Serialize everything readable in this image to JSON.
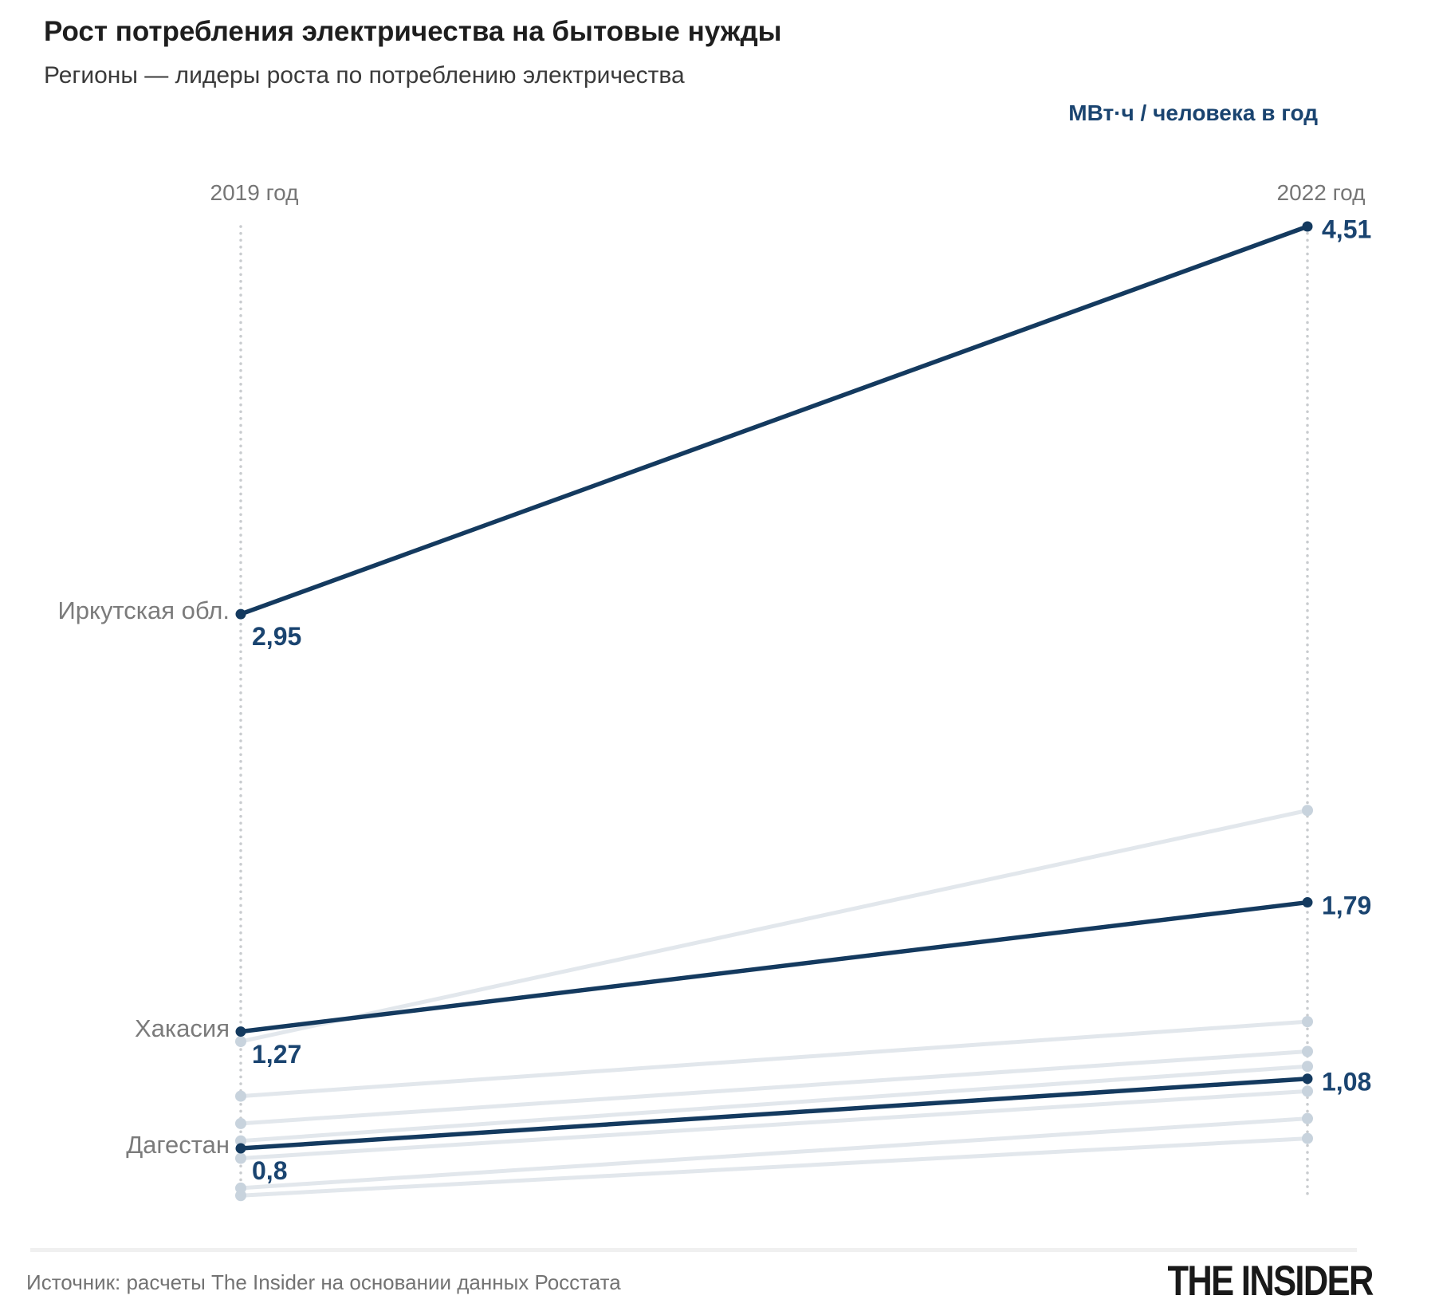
{
  "header": {
    "title": "Рост потребления электричества на бытовые нужды",
    "subtitle": "Регионы — лидеры роста по потреблению электричества"
  },
  "chart_data": {
    "type": "line",
    "subtype": "slope-chart",
    "unit": "МВт·ч / человека в год",
    "x_labels": [
      "2019 год",
      "2022 год"
    ],
    "value_range": [
      0.61,
      4.51
    ],
    "legend_position": "none",
    "grid": "off",
    "series": [
      {
        "name": "Иркутская обл.",
        "values": [
          2.95,
          4.51
        ],
        "value_labels": [
          "2,95",
          "4,51"
        ],
        "highlighted": true
      },
      {
        "name": "Хакасия",
        "values": [
          1.27,
          1.79
        ],
        "value_labels": [
          "1,27",
          "1,79"
        ],
        "highlighted": true
      },
      {
        "name": "Дагестан",
        "values": [
          0.8,
          1.08
        ],
        "value_labels": [
          "0,8",
          "1,08"
        ],
        "highlighted": true
      },
      {
        "name": "",
        "values": [
          1.23,
          2.16
        ],
        "highlighted": false
      },
      {
        "name": "",
        "values": [
          1.01,
          1.31
        ],
        "highlighted": false
      },
      {
        "name": "",
        "values": [
          0.9,
          1.19
        ],
        "highlighted": false
      },
      {
        "name": "",
        "values": [
          0.83,
          1.13
        ],
        "highlighted": false
      },
      {
        "name": "",
        "values": [
          0.76,
          1.03
        ],
        "highlighted": false
      },
      {
        "name": "",
        "values": [
          0.64,
          0.92
        ],
        "highlighted": false
      },
      {
        "name": "",
        "values": [
          0.61,
          0.84
        ],
        "highlighted": false
      }
    ],
    "colors": {
      "highlight_line": "#143a5f",
      "highlight_point": "#143a5f",
      "value_text": "#1a4470",
      "background_line": "#e2e7ec",
      "background_point": "#c8d3dd",
      "dotted_axis": "#c9cccf",
      "region_label": "#7b7b7b",
      "year_label": "#767676"
    }
  },
  "footer": {
    "source": "Источник: расчеты The Insider на основании данных Росстата",
    "logo": "THE INSIDER"
  }
}
